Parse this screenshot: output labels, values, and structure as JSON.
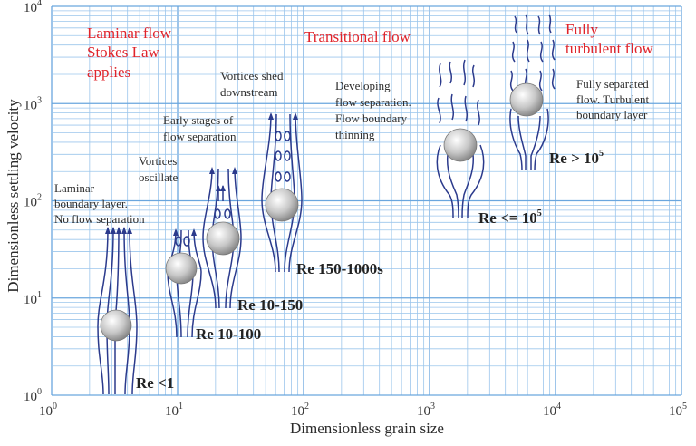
{
  "axes": {
    "xlabel": "Dimensionless grain size",
    "ylabel": "Dimensionless settling velocity",
    "x_ticks": [
      {
        "base": "10",
        "exp": "0"
      },
      {
        "base": "10",
        "exp": "1"
      },
      {
        "base": "10",
        "exp": "2"
      },
      {
        "base": "10",
        "exp": "3"
      },
      {
        "base": "10",
        "exp": "4"
      },
      {
        "base": "10",
        "exp": "5"
      }
    ],
    "y_ticks": [
      {
        "base": "10",
        "exp": "0"
      },
      {
        "base": "10",
        "exp": "1"
      },
      {
        "base": "10",
        "exp": "2"
      },
      {
        "base": "10",
        "exp": "3"
      },
      {
        "base": "10",
        "exp": "4"
      }
    ],
    "x_scale": "log",
    "y_scale": "log",
    "xlim": [
      1,
      100000
    ],
    "ylim": [
      1,
      10000
    ],
    "grid": true
  },
  "regimes": {
    "laminar": [
      "Laminar flow",
      "Stokes Law",
      "applies"
    ],
    "transitional": "Transitional flow",
    "turbulent": [
      "Fully",
      "turbulent flow"
    ]
  },
  "annotations": {
    "laminar_bl": [
      "Laminar",
      "boundary layer.",
      "No flow separation"
    ],
    "vortices_oscillate": [
      "Vortices",
      "oscillate"
    ],
    "early_separation": [
      "Early stages of",
      "flow separation"
    ],
    "vortices_shed": [
      "Vortices shed",
      "downstream"
    ],
    "developing": [
      "Developing",
      "flow separation.",
      "Flow boundary",
      "thinning"
    ],
    "fully_separated": [
      "Fully separated",
      "flow. Turbulent",
      "boundary layer"
    ]
  },
  "reynolds": {
    "re_lt1": "Re <1",
    "re_10_100": "Re 10-100",
    "re_10_150": "Re 10-150",
    "re_150_1000": "Re 150-1000s",
    "re_le_1e5": {
      "text": "Re <= 10",
      "exp": "5"
    },
    "re_gt_1e5": {
      "text": "Re > 10",
      "exp": "5"
    }
  },
  "colors": {
    "grid": "#6aa6de",
    "regime_text": "#e0242b",
    "streamline": "#2b3a8c",
    "sphere": "#bdbdbd"
  }
}
